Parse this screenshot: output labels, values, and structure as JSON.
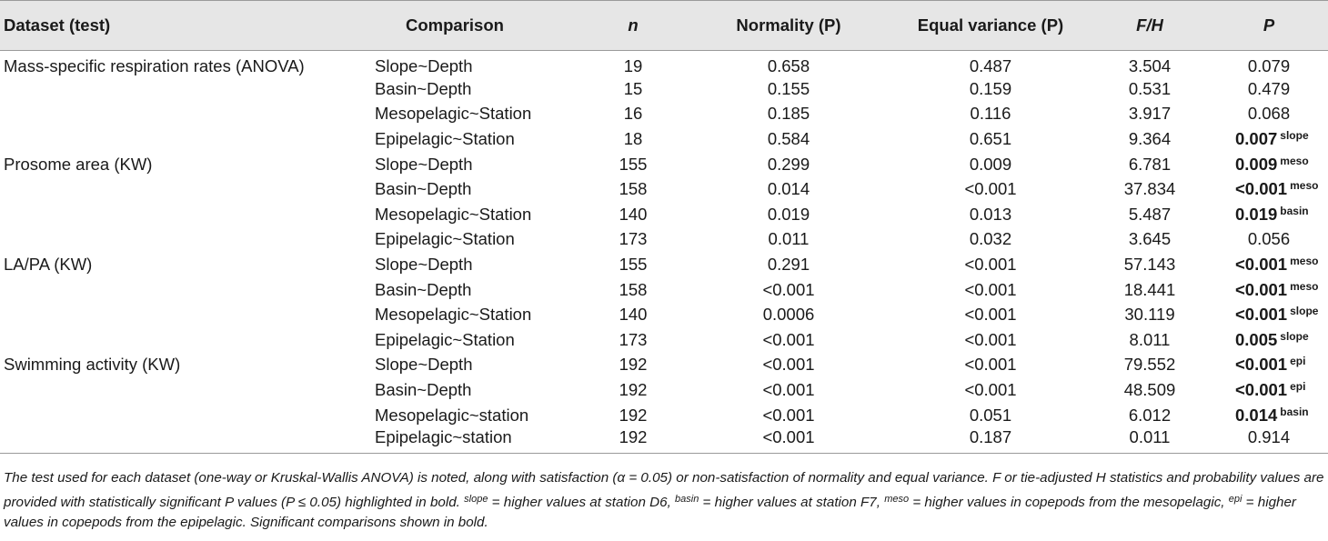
{
  "headers": {
    "dataset": "Dataset (test)",
    "comparison": "Comparison",
    "n": "n",
    "normality": "Normality (P)",
    "equal_variance": "Equal variance (P)",
    "fh": "F/H",
    "p": "P"
  },
  "rows": [
    {
      "dataset": "Mass-specific respiration rates (ANOVA)",
      "comparison": "Slope~Depth",
      "n": "19",
      "normality": "0.658",
      "equal_variance": "0.487",
      "fh": "3.504",
      "p": "0.079",
      "sig": ""
    },
    {
      "dataset": "",
      "comparison": "Basin~Depth",
      "n": "15",
      "normality": "0.155",
      "equal_variance": "0.159",
      "fh": "0.531",
      "p": "0.479",
      "sig": ""
    },
    {
      "dataset": "",
      "comparison": "Mesopelagic~Station",
      "n": "16",
      "normality": "0.185",
      "equal_variance": "0.116",
      "fh": "3.917",
      "p": "0.068",
      "sig": ""
    },
    {
      "dataset": "",
      "comparison": "Epipelagic~Station",
      "n": "18",
      "normality": "0.584",
      "equal_variance": "0.651",
      "fh": "9.364",
      "p": "0.007",
      "sig": "slope"
    },
    {
      "dataset": "Prosome area (KW)",
      "comparison": "Slope~Depth",
      "n": "155",
      "normality": "0.299",
      "equal_variance": "0.009",
      "fh": "6.781",
      "p": "0.009",
      "sig": "meso"
    },
    {
      "dataset": "",
      "comparison": "Basin~Depth",
      "n": "158",
      "normality": "0.014",
      "equal_variance": "<0.001",
      "fh": "37.834",
      "p": "<0.001",
      "sig": "meso"
    },
    {
      "dataset": "",
      "comparison": "Mesopelagic~Station",
      "n": "140",
      "normality": "0.019",
      "equal_variance": "0.013",
      "fh": "5.487",
      "p": "0.019",
      "sig": "basin"
    },
    {
      "dataset": "",
      "comparison": "Epipelagic~Station",
      "n": "173",
      "normality": "0.011",
      "equal_variance": "0.032",
      "fh": "3.645",
      "p": "0.056",
      "sig": ""
    },
    {
      "dataset": "LA/PA (KW)",
      "comparison": "Slope~Depth",
      "n": "155",
      "normality": "0.291",
      "equal_variance": "<0.001",
      "fh": "57.143",
      "p": "<0.001",
      "sig": "meso"
    },
    {
      "dataset": "",
      "comparison": "Basin~Depth",
      "n": "158",
      "normality": "<0.001",
      "equal_variance": "<0.001",
      "fh": "18.441",
      "p": "<0.001",
      "sig": "meso"
    },
    {
      "dataset": "",
      "comparison": "Mesopelagic~Station",
      "n": "140",
      "normality": "0.0006",
      "equal_variance": "<0.001",
      "fh": "30.119",
      "p": "<0.001",
      "sig": "slope"
    },
    {
      "dataset": "",
      "comparison": "Epipelagic~Station",
      "n": "173",
      "normality": "<0.001",
      "equal_variance": "<0.001",
      "fh": "8.011",
      "p": "0.005",
      "sig": "slope"
    },
    {
      "dataset": "Swimming activity (KW)",
      "comparison": "Slope~Depth",
      "n": "192",
      "normality": "<0.001",
      "equal_variance": "<0.001",
      "fh": "79.552",
      "p": "<0.001",
      "sig": "epi"
    },
    {
      "dataset": "",
      "comparison": "Basin~Depth",
      "n": "192",
      "normality": "<0.001",
      "equal_variance": "<0.001",
      "fh": "48.509",
      "p": "<0.001",
      "sig": "epi"
    },
    {
      "dataset": "",
      "comparison": "Mesopelagic~station",
      "n": "192",
      "normality": "<0.001",
      "equal_variance": "0.051",
      "fh": "6.012",
      "p": "0.014",
      "sig": "basin"
    },
    {
      "dataset": "",
      "comparison": "Epipelagic~station",
      "n": "192",
      "normality": "<0.001",
      "equal_variance": "0.187",
      "fh": "0.011",
      "p": "0.914",
      "sig": ""
    }
  ],
  "footnote": {
    "part1": "The test used for each dataset (one-way or Kruskal-Wallis ANOVA) is noted, along with satisfaction (α = 0.05) or non-satisfaction of normality and equal variance. F or tie-adjusted H statistics and probability values are provided with statistically significant P values (P ≤ 0.05) highlighted in bold. ",
    "sup_slope": "slope",
    "part2": " = higher values at station D6, ",
    "sup_basin": "basin",
    "part3": " = higher values at station F7, ",
    "sup_meso": "meso",
    "part4": " = higher values in copepods from the mesopelagic, ",
    "sup_epi": "epi",
    "part5": " = higher values in copepods from the epipelagic. Significant comparisons shown in bold."
  }
}
